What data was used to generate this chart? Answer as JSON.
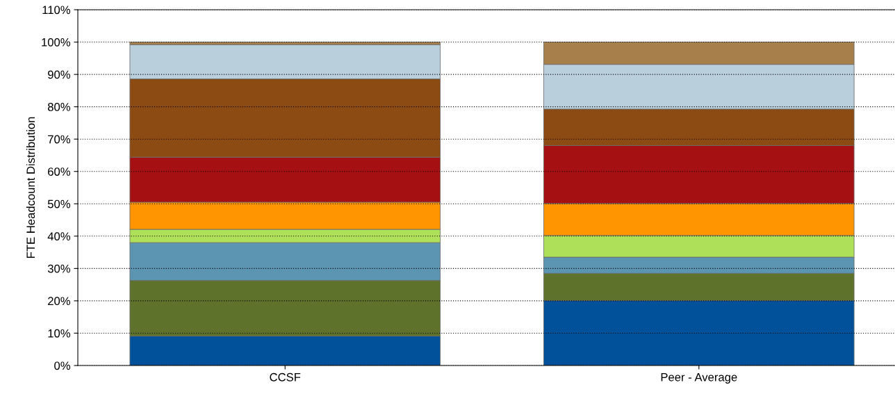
{
  "chart_data": {
    "type": "bar",
    "stacked": true,
    "ylabel": "FTE Headcount Distribution",
    "categories": [
      "CCSF",
      "Peer - Average"
    ],
    "series": [
      {
        "color": "#00519a",
        "values": [
          9.1,
          20.1
        ]
      },
      {
        "color": "#5e722c",
        "values": [
          17.2,
          8.4
        ]
      },
      {
        "color": "#5b95b2",
        "values": [
          11.7,
          5.0
        ]
      },
      {
        "color": "#afe05a",
        "values": [
          4.1,
          6.7
        ]
      },
      {
        "color": "#ff9500",
        "values": [
          8.4,
          9.9
        ]
      },
      {
        "color": "#a51013",
        "values": [
          13.9,
          17.9
        ]
      },
      {
        "color": "#8d4b14",
        "values": [
          24.2,
          11.3
        ]
      },
      {
        "color": "#b9d0dc",
        "values": [
          10.6,
          13.8
        ]
      },
      {
        "color": "#a67f4b",
        "values": [
          0.8,
          6.9
        ]
      }
    ],
    "ylim": [
      0,
      110
    ],
    "yticks": [
      {
        "value": 0,
        "label": "0%"
      },
      {
        "value": 10,
        "label": "10%"
      },
      {
        "value": 20,
        "label": "20%"
      },
      {
        "value": 30,
        "label": "30%"
      },
      {
        "value": 40,
        "label": "40%"
      },
      {
        "value": 50,
        "label": "50%"
      },
      {
        "value": 60,
        "label": "60%"
      },
      {
        "value": 70,
        "label": "70%"
      },
      {
        "value": 80,
        "label": "80%"
      },
      {
        "value": 90,
        "label": "90%"
      },
      {
        "value": 100,
        "label": "100%"
      },
      {
        "value": 110,
        "label": "110%"
      }
    ],
    "grid": "y",
    "legend": false
  }
}
